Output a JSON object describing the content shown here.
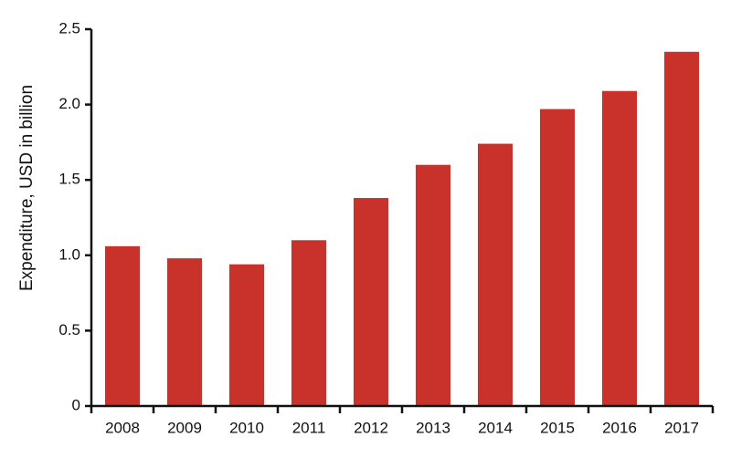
{
  "chart_data": {
    "type": "bar",
    "y_label": "Expenditure, USD in billion",
    "categories": [
      "2008",
      "2009",
      "2010",
      "2011",
      "2012",
      "2013",
      "2014",
      "2015",
      "2016",
      "2017"
    ],
    "values": [
      1.06,
      0.98,
      0.94,
      1.1,
      1.38,
      1.6,
      1.74,
      1.97,
      2.09,
      2.35
    ],
    "color": "#c9322b",
    "ylim": [
      0,
      2.5
    ],
    "yticks": [
      0,
      0.5,
      {
        "value": 1,
        "label": "1.0"
      },
      1.5,
      {
        "value": 2,
        "label": "2.0"
      },
      2.5
    ],
    "grid": false
  }
}
